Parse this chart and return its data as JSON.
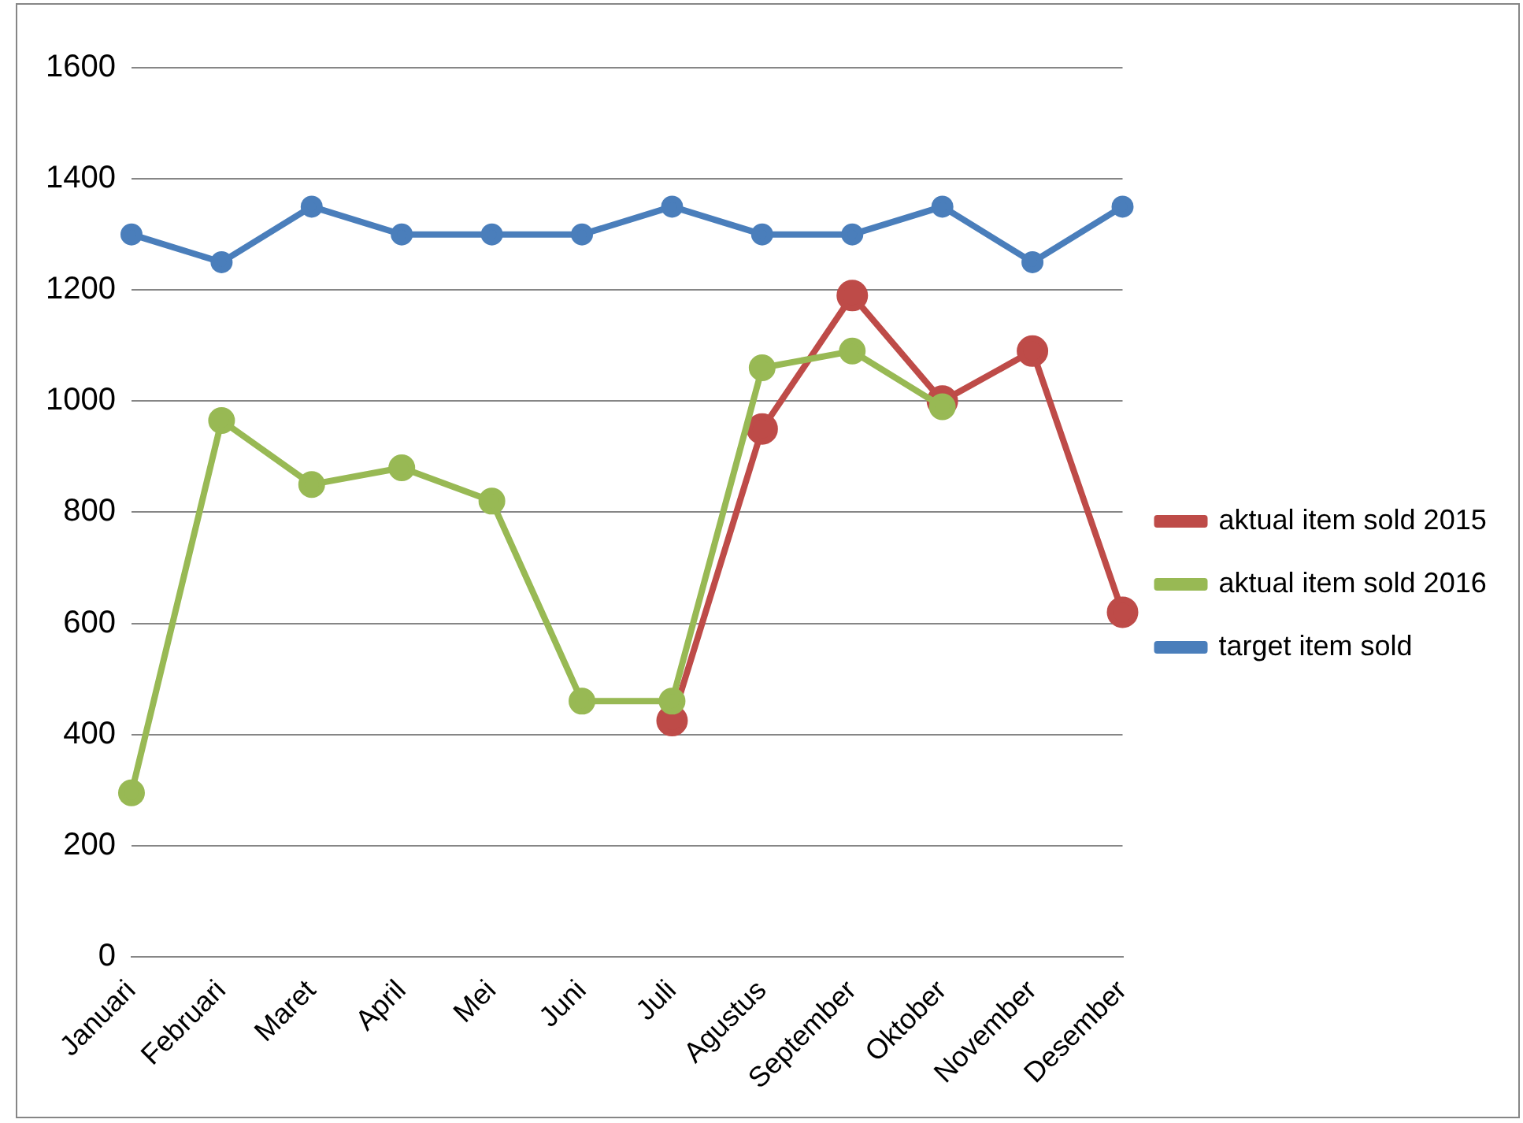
{
  "chart_data": {
    "type": "line",
    "categories": [
      "Januari",
      "Februari",
      "Maret",
      "April",
      "Mei",
      "Juni",
      "Juli",
      "Agustus",
      "September",
      "Oktober",
      "November",
      "Desember"
    ],
    "series": [
      {
        "name": "aktual item sold 2015",
        "color": "#be4b48",
        "values": [
          null,
          null,
          null,
          null,
          null,
          null,
          425,
          950,
          1190,
          1000,
          1090,
          620
        ]
      },
      {
        "name": "aktual item sold 2016",
        "color": "#98b954",
        "values": [
          295,
          965,
          850,
          880,
          820,
          460,
          460,
          1060,
          1090,
          990,
          null,
          null
        ]
      },
      {
        "name": "target item sold",
        "color": "#4a7ebb",
        "values": [
          1300,
          1250,
          1350,
          1300,
          1300,
          1300,
          1350,
          1300,
          1300,
          1350,
          1250,
          1350
        ]
      }
    ],
    "ylim": [
      0,
      1600
    ],
    "yticks": [
      0,
      200,
      400,
      600,
      800,
      1000,
      1200,
      1400,
      1600
    ],
    "grid": "y",
    "legend": "right",
    "marker": "circle",
    "line_style": "solid"
  }
}
